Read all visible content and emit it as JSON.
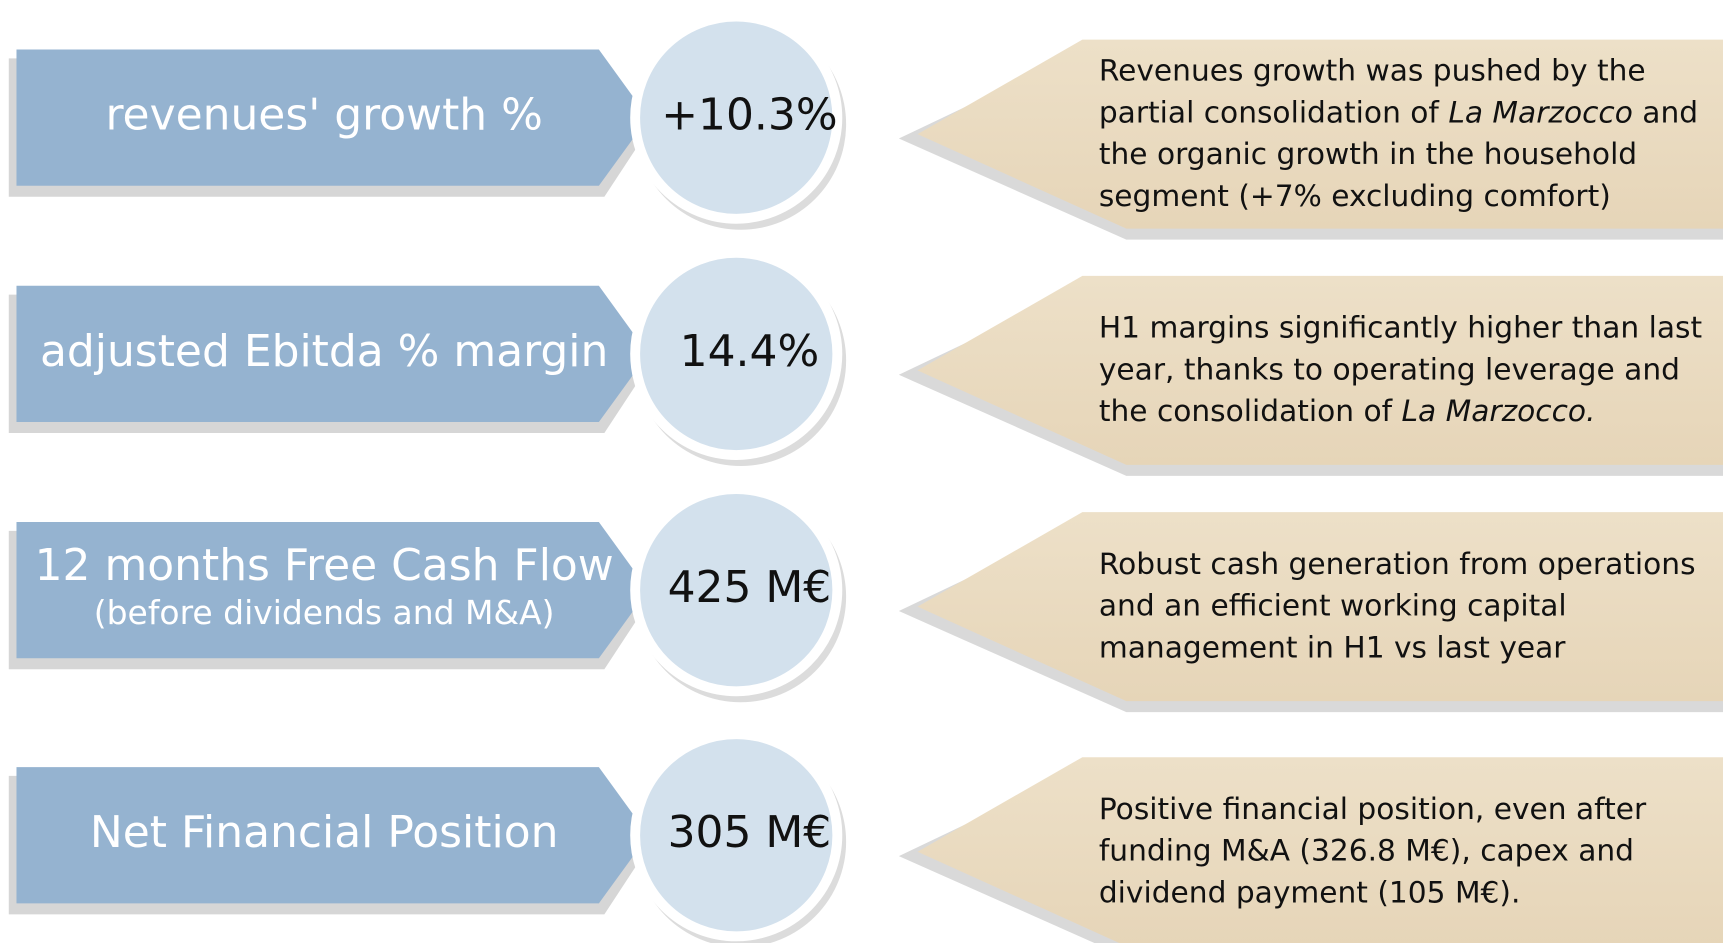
{
  "rows": [
    {
      "label": "revenues' growth %",
      "value": "+10.3%",
      "description": [
        [
          {
            "text": "Revenues growth was pushed by the"
          }
        ],
        [
          {
            "text": "partial consolidation of "
          },
          {
            "text": "La Marzocco",
            "italic": true
          },
          {
            "text": " and"
          }
        ],
        [
          {
            "text": "the organic growth in the household"
          }
        ],
        [
          {
            "text": "segment (+7% excluding comfort)"
          }
        ]
      ]
    },
    {
      "label": "adjusted Ebitda % margin",
      "value": "14.4%",
      "description": [
        [
          {
            "text": "H1 margins significantly higher than last"
          }
        ],
        [
          {
            "text": "year, thanks to operating leverage and"
          }
        ],
        [
          {
            "text": "the consolidation of "
          },
          {
            "text": "La Marzocco.",
            "italic": true
          }
        ]
      ]
    },
    {
      "label": "12 months Free Cash Flow",
      "sublabel": "(before dividends and M&A)",
      "value": "425 M€",
      "description": [
        [
          {
            "text": "Robust cash generation from operations"
          }
        ],
        [
          {
            "text": "and an efficient working capital"
          }
        ],
        [
          {
            "text": "management in H1 vs last year"
          }
        ]
      ]
    },
    {
      "label": "Net Financial Position",
      "value": "305 M€",
      "description": [
        [
          {
            "text": "Positive financial position, even after"
          }
        ],
        [
          {
            "text": "funding M&A (326.8 M€), capex and"
          }
        ],
        [
          {
            "text": "dividend payment (105 M€)."
          }
        ]
      ]
    }
  ]
}
